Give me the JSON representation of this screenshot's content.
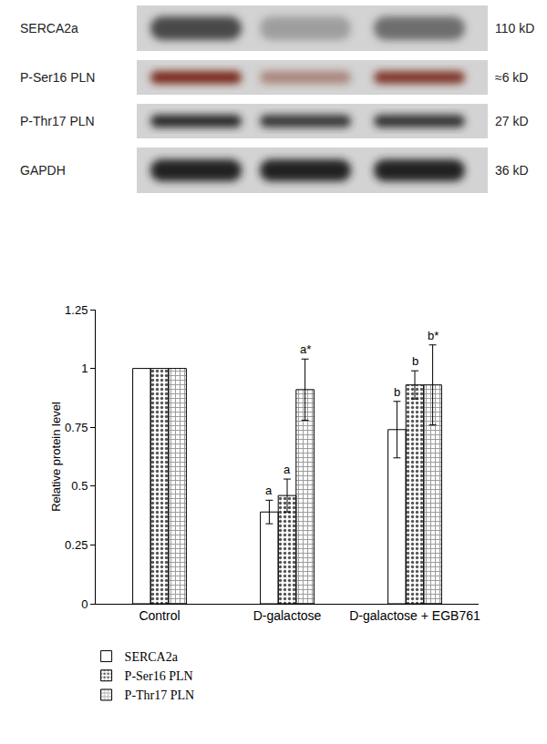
{
  "chart_data": {
    "type": "bar",
    "categories": [
      "Control",
      "D-galactose",
      "D-galactose + EGB761"
    ],
    "y_label": "Relative protein level",
    "ylim": [
      0,
      1.25
    ],
    "yticks": [
      0,
      0.25,
      0.5,
      0.75,
      1,
      1.25
    ],
    "grid": false,
    "legend": "bottom left",
    "series": [
      {
        "name": "SERCA2a",
        "color": "#ffffff",
        "values": [
          1,
          0.39,
          0.74
        ],
        "errors": [
          null,
          0.05,
          0.12
        ],
        "significance": [
          null,
          "a",
          "b"
        ]
      },
      {
        "name": "P-Ser16 PLN",
        "color": "#d4d4d4",
        "values": [
          1,
          0.46,
          0.93
        ],
        "errors": [
          null,
          0.07,
          0.06
        ],
        "significance": [
          null,
          "a",
          "b"
        ]
      },
      {
        "name": "P-Thr17 PLN",
        "color": "#3c3c3c",
        "values": [
          1,
          0.91,
          0.93
        ],
        "errors": [
          null,
          0.13,
          0.17
        ],
        "significance": [
          null,
          "a*",
          "b*"
        ]
      }
    ]
  },
  "blot": {
    "rows": [
      {
        "label": "SERCA2a",
        "size": "110 kD",
        "color": "#4a4a4a"
      },
      {
        "label": "P-Ser16 PLN",
        "size": "≈6 kD",
        "color": "#7a2b1c"
      },
      {
        "label": "P-Thr17 PLN",
        "size": "27 kD",
        "color": "#2a2a2a"
      },
      {
        "label": "GAPDH",
        "size": "36 kD",
        "color": "#202020"
      }
    ]
  }
}
